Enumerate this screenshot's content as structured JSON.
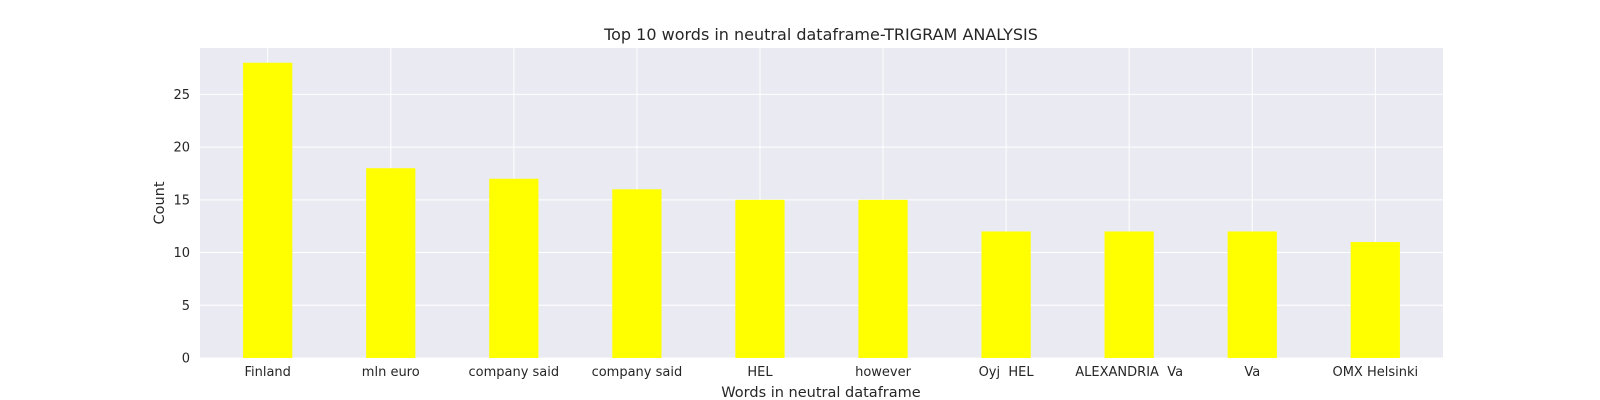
{
  "chart_data": {
    "type": "bar",
    "title": "Top 10 words in neutral dataframe-TRIGRAM ANALYSIS",
    "xlabel": "Words in neutral dataframe",
    "ylabel": "Count",
    "categories": [
      "Finland",
      "mln euro",
      "company said",
      "company said",
      "HEL",
      "however",
      "Oyj  HEL",
      "ALEXANDRIA  Va",
      "Va",
      "OMX Helsinki"
    ],
    "values": [
      28,
      18,
      17,
      16,
      15,
      15,
      12,
      12,
      12,
      11
    ],
    "ylim": [
      0,
      29.4
    ],
    "yticks": [
      0,
      5,
      10,
      15,
      20,
      25
    ],
    "grid": true,
    "colors": {
      "bar": "#ffff00",
      "plot_background": "#eaeaf2",
      "grid": "#ffffff",
      "text": "#262626"
    }
  }
}
